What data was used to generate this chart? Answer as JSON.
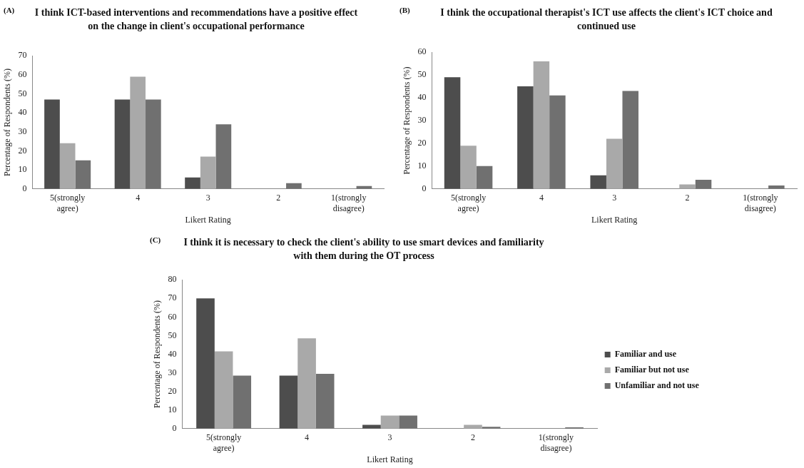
{
  "chart_data": [
    {
      "type": "bar",
      "title": "I think ICT-based interventions and recommendations have a positive effect on the change in client's occupational performance",
      "annotations": [
        "(A)"
      ],
      "xlabel": "Likert Rating",
      "ylabel": "Percentage of Respondents (%)",
      "categories": [
        "5(strongly agree)",
        "4",
        "3",
        "2",
        "1(strongly disagree)"
      ],
      "series": [
        {
          "color": "#4d4d4d",
          "values": [
            47,
            47,
            6,
            0,
            0
          ]
        },
        {
          "color": "#a9a9a9",
          "values": [
            24,
            59,
            17,
            0,
            0
          ]
        },
        {
          "color": "#707070",
          "values": [
            15,
            47,
            34,
            3,
            1.5
          ]
        }
      ],
      "ylim": [
        0,
        70
      ],
      "yticks": [
        0,
        10,
        20,
        30,
        40,
        50,
        60,
        70
      ],
      "grid": false,
      "legend": false
    },
    {
      "type": "bar",
      "title": "I think the occupational therapist's ICT use affects the client's ICT choice and continued use",
      "annotations": [
        "(B)"
      ],
      "xlabel": "Likert Rating",
      "ylabel": "Percentage of Respondents (%)",
      "categories": [
        "5(strongly agree)",
        "4",
        "3",
        "2",
        "1(strongly disagree)"
      ],
      "series": [
        {
          "color": "#4d4d4d",
          "values": [
            49,
            45,
            6,
            0,
            0
          ]
        },
        {
          "color": "#a9a9a9",
          "values": [
            19,
            56,
            22,
            2,
            0
          ]
        },
        {
          "color": "#707070",
          "values": [
            10,
            41,
            43,
            4,
            1.5
          ]
        }
      ],
      "ylim": [
        0,
        60
      ],
      "yticks": [
        0,
        10,
        20,
        30,
        40,
        50,
        60
      ],
      "grid": false,
      "legend": false
    },
    {
      "type": "bar",
      "title": "I think it is necessary to check the client's ability to use smart devices and familiarity with them during the OT process",
      "annotations": [
        "(C)"
      ],
      "xlabel": "Likert Rating",
      "ylabel": "Percentage of Respondents (%)",
      "categories": [
        "5(strongly agree)",
        "4",
        "3",
        "2",
        "1(strongly disagree)"
      ],
      "series": [
        {
          "name": "Familiar and use",
          "color": "#4d4d4d",
          "values": [
            70,
            28.5,
            2,
            0,
            0
          ]
        },
        {
          "name": "Familiar but not use",
          "color": "#a9a9a9",
          "values": [
            41.5,
            48.5,
            7,
            2,
            0
          ]
        },
        {
          "name": "Unfamiliar and not use",
          "color": "#707070",
          "values": [
            28.5,
            29.5,
            7,
            1,
            0.7
          ]
        }
      ],
      "ylim": [
        0,
        80
      ],
      "yticks": [
        0,
        10,
        20,
        30,
        40,
        50,
        60,
        70,
        80
      ],
      "grid": false,
      "legend": "right"
    }
  ]
}
